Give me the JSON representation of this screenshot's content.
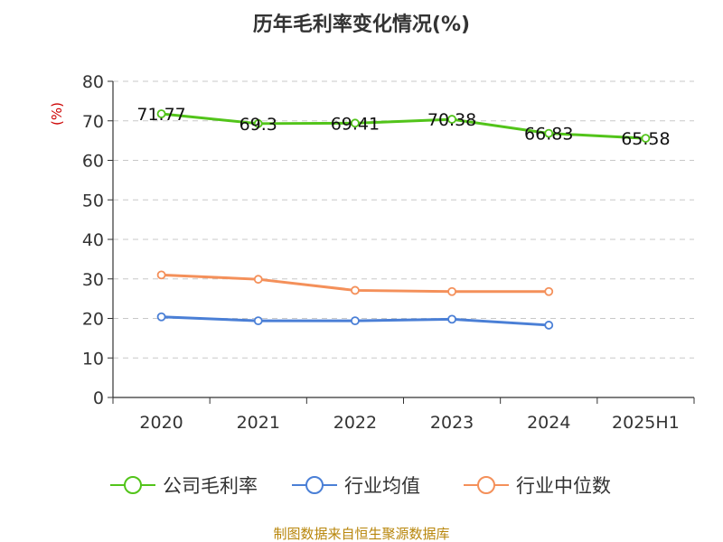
{
  "chart_data": {
    "type": "line",
    "title": "历年毛利率变化情况(%)",
    "ylabel": "(%)",
    "xlabel": "",
    "categories": [
      "2020",
      "2021",
      "2022",
      "2023",
      "2024",
      "2025H1"
    ],
    "ylim": [
      0,
      80
    ],
    "yticks": [
      0,
      10,
      20,
      30,
      40,
      50,
      60,
      70,
      80
    ],
    "grid": true,
    "legend_position": "bottom",
    "series": [
      {
        "name": "公司毛利率",
        "color": "#52c41a",
        "values": [
          71.77,
          69.3,
          69.41,
          70.38,
          66.83,
          65.58
        ],
        "labels": [
          "71.77",
          "69.3",
          "69.41",
          "70.38",
          "66.83",
          "65.58"
        ]
      },
      {
        "name": "行业均值",
        "color": "#4a7fd6",
        "values": [
          20.4,
          19.4,
          19.4,
          19.8,
          18.3,
          null
        ]
      },
      {
        "name": "行业中位数",
        "color": "#f4905a",
        "values": [
          31.0,
          29.9,
          27.1,
          26.8,
          26.8,
          null
        ]
      }
    ]
  },
  "footer": {
    "source": "制图数据来自恒生聚源数据库"
  }
}
